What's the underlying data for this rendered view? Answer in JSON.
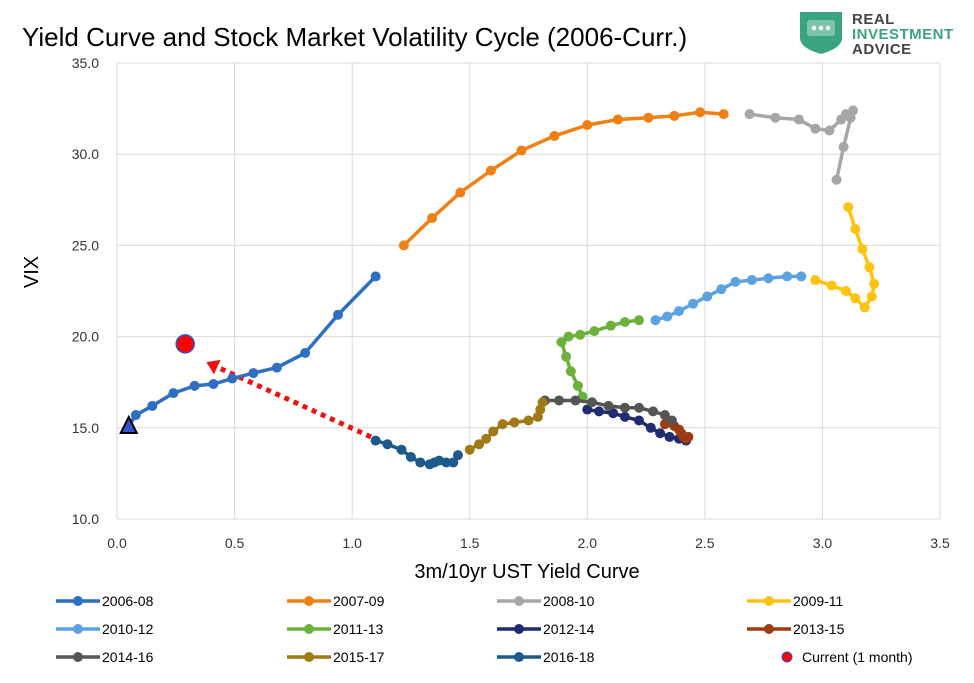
{
  "title": "Yield Curve and Stock Market Volatility Cycle (2006-Curr.)",
  "logo": {
    "line1": "REAL",
    "line2": "INVESTMENT",
    "line3": "ADVICE",
    "color": "#3aa37f"
  },
  "chart_data": {
    "type": "scatter",
    "xlabel": "3m/10yr UST Yield Curve",
    "ylabel": "VIX",
    "xlim": [
      0,
      3.5
    ],
    "ylim": [
      10,
      35
    ],
    "x_ticks": [
      "0.0",
      "0.5",
      "1.0",
      "1.5",
      "2.0",
      "2.5",
      "3.0",
      "3.5"
    ],
    "y_ticks": [
      "10.0",
      "15.0",
      "20.0",
      "25.0",
      "30.0",
      "35.0"
    ],
    "grid": true,
    "legend_position": "bottom",
    "series": [
      {
        "name": "2006-08",
        "color": "#2e6fc2",
        "points": [
          [
            0.05,
            15.1
          ],
          [
            0.08,
            15.7
          ],
          [
            0.15,
            16.2
          ],
          [
            0.24,
            16.9
          ],
          [
            0.33,
            17.3
          ],
          [
            0.41,
            17.4
          ],
          [
            0.49,
            17.7
          ],
          [
            0.58,
            18.0
          ],
          [
            0.68,
            18.3
          ],
          [
            0.8,
            19.1
          ],
          [
            0.94,
            21.2
          ],
          [
            1.1,
            23.3
          ]
        ]
      },
      {
        "name": "2007-09",
        "color": "#f07f14",
        "points": [
          [
            1.22,
            25.0
          ],
          [
            1.34,
            26.5
          ],
          [
            1.46,
            27.9
          ],
          [
            1.59,
            29.1
          ],
          [
            1.72,
            30.2
          ],
          [
            1.86,
            31.0
          ],
          [
            2.0,
            31.6
          ],
          [
            2.13,
            31.9
          ],
          [
            2.26,
            32.0
          ],
          [
            2.37,
            32.1
          ],
          [
            2.48,
            32.3
          ],
          [
            2.58,
            32.2
          ]
        ]
      },
      {
        "name": "2008-10",
        "color": "#a6a6a6",
        "points": [
          [
            2.69,
            32.2
          ],
          [
            2.8,
            32.0
          ],
          [
            2.9,
            31.9
          ],
          [
            2.97,
            31.4
          ],
          [
            3.03,
            31.3
          ],
          [
            3.08,
            31.9
          ],
          [
            3.1,
            32.2
          ],
          [
            3.13,
            32.4
          ],
          [
            3.12,
            32.0
          ],
          [
            3.09,
            30.4
          ],
          [
            3.06,
            28.6
          ]
        ]
      },
      {
        "name": "2009-11",
        "color": "#ffc20e",
        "points": [
          [
            2.97,
            23.1
          ],
          [
            3.04,
            22.8
          ],
          [
            3.1,
            22.5
          ],
          [
            3.14,
            22.1
          ],
          [
            3.18,
            21.6
          ],
          [
            3.21,
            22.2
          ],
          [
            3.22,
            22.9
          ],
          [
            3.2,
            23.8
          ],
          [
            3.17,
            24.8
          ],
          [
            3.14,
            25.9
          ],
          [
            3.11,
            27.1
          ]
        ]
      },
      {
        "name": "2010-12",
        "color": "#5aa2e0",
        "points": [
          [
            2.29,
            20.9
          ],
          [
            2.34,
            21.1
          ],
          [
            2.39,
            21.4
          ],
          [
            2.45,
            21.8
          ],
          [
            2.51,
            22.2
          ],
          [
            2.57,
            22.6
          ],
          [
            2.63,
            23.0
          ],
          [
            2.7,
            23.1
          ],
          [
            2.77,
            23.2
          ],
          [
            2.85,
            23.3
          ],
          [
            2.91,
            23.3
          ]
        ]
      },
      {
        "name": "2011-13",
        "color": "#6bb13a",
        "points": [
          [
            2.22,
            20.9
          ],
          [
            2.16,
            20.8
          ],
          [
            2.1,
            20.6
          ],
          [
            2.03,
            20.3
          ],
          [
            1.97,
            20.1
          ],
          [
            1.92,
            20.0
          ],
          [
            1.89,
            19.7
          ],
          [
            1.91,
            18.9
          ],
          [
            1.93,
            18.1
          ],
          [
            1.96,
            17.3
          ],
          [
            1.98,
            16.7
          ]
        ]
      },
      {
        "name": "2012-14",
        "color": "#1f2d6e",
        "points": [
          [
            2.0,
            16.0
          ],
          [
            2.05,
            15.9
          ],
          [
            2.11,
            15.8
          ],
          [
            2.16,
            15.6
          ],
          [
            2.22,
            15.4
          ],
          [
            2.27,
            15.0
          ],
          [
            2.31,
            14.7
          ],
          [
            2.35,
            14.5
          ],
          [
            2.39,
            14.4
          ],
          [
            2.42,
            14.3
          ]
        ]
      },
      {
        "name": "2013-15",
        "color": "#9c3a10",
        "points": [
          [
            2.33,
            15.2
          ],
          [
            2.37,
            15.1
          ],
          [
            2.39,
            14.9
          ],
          [
            2.4,
            14.7
          ],
          [
            2.41,
            14.5
          ],
          [
            2.42,
            14.4
          ],
          [
            2.43,
            14.5
          ]
        ]
      },
      {
        "name": "2014-16",
        "color": "#555555",
        "points": [
          [
            1.82,
            16.5
          ],
          [
            1.88,
            16.5
          ],
          [
            1.95,
            16.5
          ],
          [
            2.02,
            16.4
          ],
          [
            2.09,
            16.2
          ],
          [
            2.16,
            16.1
          ],
          [
            2.22,
            16.1
          ],
          [
            2.28,
            15.9
          ],
          [
            2.33,
            15.7
          ],
          [
            2.36,
            15.4
          ]
        ]
      },
      {
        "name": "2015-17",
        "color": "#a07a14",
        "points": [
          [
            1.81,
            16.4
          ],
          [
            1.8,
            16.0
          ],
          [
            1.79,
            15.6
          ],
          [
            1.75,
            15.4
          ],
          [
            1.69,
            15.3
          ],
          [
            1.64,
            15.2
          ],
          [
            1.6,
            14.8
          ],
          [
            1.57,
            14.4
          ],
          [
            1.54,
            14.1
          ],
          [
            1.5,
            13.8
          ]
        ]
      },
      {
        "name": "2016-18",
        "color": "#1b5b8c",
        "points": [
          [
            1.1,
            14.3
          ],
          [
            1.15,
            14.1
          ],
          [
            1.21,
            13.8
          ],
          [
            1.25,
            13.4
          ],
          [
            1.29,
            13.1
          ],
          [
            1.33,
            13.0
          ],
          [
            1.35,
            13.1
          ],
          [
            1.37,
            13.2
          ],
          [
            1.4,
            13.1
          ],
          [
            1.43,
            13.1
          ],
          [
            1.45,
            13.5
          ]
        ]
      },
      {
        "name": "Current (1 month)",
        "color": "#ff0000",
        "marker": "circle",
        "points": [
          [
            0.29,
            19.6
          ]
        ]
      }
    ],
    "start_marker": {
      "x": 0.05,
      "y": 15.1,
      "shape": "triangle",
      "color": "#3355cc"
    },
    "arrow": {
      "from": [
        1.08,
        14.5
      ],
      "to": [
        0.38,
        18.6
      ],
      "color": "#ee1111",
      "style": "dotted"
    }
  }
}
